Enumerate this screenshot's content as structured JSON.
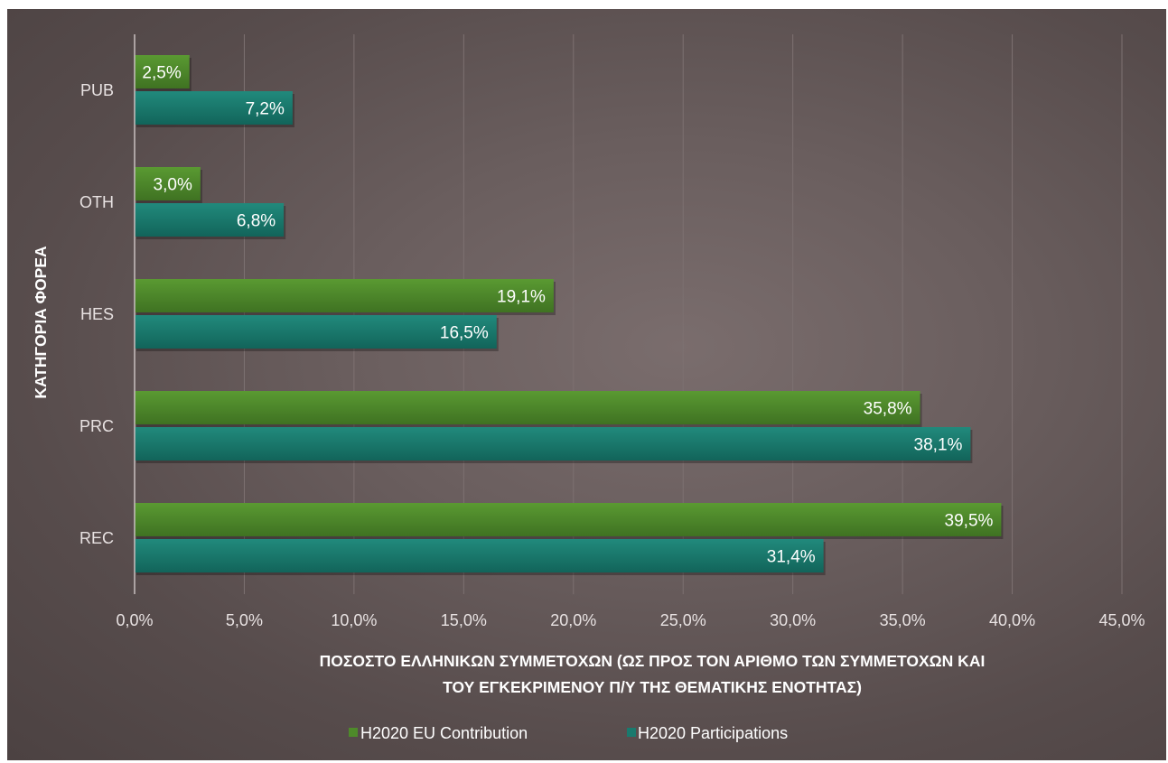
{
  "chart_data": {
    "type": "bar",
    "orientation": "horizontal",
    "categories": [
      "REC",
      "PRC",
      "HES",
      "OTH",
      "PUB"
    ],
    "series": [
      {
        "name": "H2020 EU Contribution",
        "color": "#4e8a2a",
        "values": [
          39.5,
          35.8,
          19.1,
          3.0,
          2.5
        ],
        "labels": [
          "39,5%",
          "35,8%",
          "19,1%",
          "3,0%",
          "2,5%"
        ]
      },
      {
        "name": "H2020 Participations",
        "color": "#1a7a6e",
        "values": [
          31.4,
          38.1,
          16.5,
          6.8,
          7.2
        ],
        "labels": [
          "31,4%",
          "38,1%",
          "16,5%",
          "6,8%",
          "7,2%"
        ]
      }
    ],
    "xlim": [
      0,
      45
    ],
    "xticks": [
      0,
      5,
      10,
      15,
      20,
      25,
      30,
      35,
      40,
      45
    ],
    "xtick_labels": [
      "0,0%",
      "5,0%",
      "10,0%",
      "15,0%",
      "20,0%",
      "25,0%",
      "30,0%",
      "35,0%",
      "40,0%",
      "45,0%"
    ],
    "xlabel_lines": [
      "ΠΟΣΟΣΤΟ ΕΛΛΗΝΙΚΩΝ ΣΥΜΜΕΤΟΧΩΝ (ΩΣ ΠΡΟΣ ΤΟΝ ΑΡΙΘΜΟ ΤΩΝ ΣΥΜΜΕΤΟΧΩΝ ΚΑΙ",
      "ΤΟΥ ΕΓΚΕΚΡΙΜΕΝΟΥ Π/Υ ΤΗΣ ΘΕΜΑΤΙΚΗΣ ΕΝΟΤΗΤΑΣ)"
    ],
    "ylabel": "ΚΑΤΗΓΟΡΙΑ ΦΟΡΕΑ",
    "grid": "vertical",
    "legend": "bottom-center",
    "colors": {
      "background": "#625656",
      "eu_contribution": "#4e8a2a",
      "participations": "#1a7a6e",
      "grid": "#7d7171"
    }
  }
}
